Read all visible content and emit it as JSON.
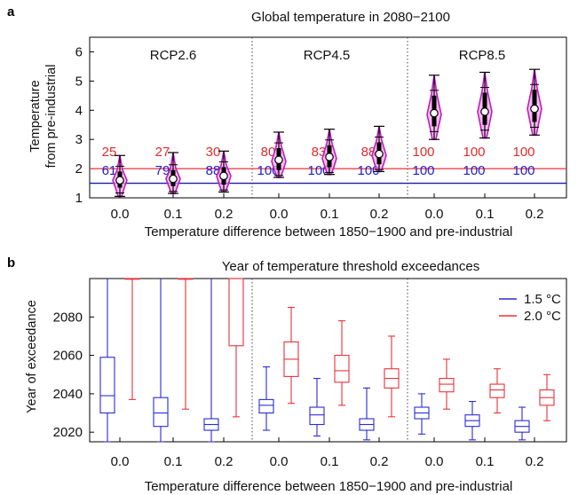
{
  "chart_data": [
    {
      "type": "box",
      "panel_label": "a",
      "title": "Global temperature in 2080−2100",
      "xlabel": "Temperature difference between 1850−1900 and pre-industrial",
      "ylabel": "Temperature from pre-industrial",
      "ylabel_lines": [
        "Temperature",
        "from pre-industrial"
      ],
      "ylim": [
        1,
        6.5
      ],
      "yticks": [
        "1",
        "2",
        "3",
        "4",
        "5",
        "6"
      ],
      "groups": [
        "RCP2.6",
        "RCP4.5",
        "RCP8.5"
      ],
      "x_categories": [
        "0.0",
        "0.1",
        "0.2"
      ],
      "reference_lines": [
        {
          "value": 1.5,
          "color": "#1a1aa6"
        },
        {
          "value": 2.0,
          "color": "#e8333a"
        }
      ],
      "series": [
        {
          "group": "RCP2.6",
          "x": "0.0",
          "min": 1.05,
          "q1": 1.35,
          "median": 1.6,
          "q3": 1.9,
          "max": 2.45,
          "mean": 1.6
        },
        {
          "group": "RCP2.6",
          "x": "0.1",
          "min": 1.15,
          "q1": 1.4,
          "median": 1.65,
          "q3": 1.95,
          "max": 2.55,
          "mean": 1.65
        },
        {
          "group": "RCP2.6",
          "x": "0.2",
          "min": 1.2,
          "q1": 1.45,
          "median": 1.75,
          "q3": 2.05,
          "max": 2.6,
          "mean": 1.75
        },
        {
          "group": "RCP4.5",
          "x": "0.0",
          "min": 1.7,
          "q1": 1.95,
          "median": 2.25,
          "q3": 2.7,
          "max": 3.25,
          "mean": 2.3
        },
        {
          "group": "RCP4.5",
          "x": "0.1",
          "min": 1.8,
          "q1": 2.05,
          "median": 2.35,
          "q3": 2.8,
          "max": 3.35,
          "mean": 2.4
        },
        {
          "group": "RCP4.5",
          "x": "0.2",
          "min": 1.9,
          "q1": 2.15,
          "median": 2.45,
          "q3": 2.9,
          "max": 3.45,
          "mean": 2.5
        },
        {
          "group": "RCP8.5",
          "x": "0.0",
          "min": 3.0,
          "q1": 3.45,
          "median": 3.85,
          "q3": 4.5,
          "max": 5.2,
          "mean": 3.9
        },
        {
          "group": "RCP8.5",
          "x": "0.1",
          "min": 3.05,
          "q1": 3.5,
          "median": 3.95,
          "q3": 4.6,
          "max": 5.3,
          "mean": 3.95
        },
        {
          "group": "RCP8.5",
          "x": "0.2",
          "min": 3.15,
          "q1": 3.6,
          "median": 4.05,
          "q3": 4.7,
          "max": 5.4,
          "mean": 4.05
        }
      ],
      "percent_labels_2_0": [
        "25",
        "27",
        "30",
        "80",
        "83",
        "88",
        "100",
        "100",
        "100"
      ],
      "percent_labels_1_5": [
        "61",
        "79",
        "88",
        "100",
        "100",
        "100",
        "100",
        "100",
        "100"
      ]
    },
    {
      "type": "box",
      "panel_label": "b",
      "title": "Year of temperature threshold exceedances",
      "xlabel": "Temperature difference between 1850−1900 and pre-industrial",
      "ylabel": "Year of exceedance",
      "ylim": [
        2015,
        2100
      ],
      "yticks": [
        "2020",
        "2040",
        "2060",
        "2080"
      ],
      "x_categories": [
        "0.0",
        "0.1",
        "0.2"
      ],
      "legend": {
        "position": "top-right",
        "entries": [
          {
            "label": "1.5 °C",
            "color": "#2b2bd6"
          },
          {
            "label": "2.0 °C",
            "color": "#e8333a"
          }
        ]
      },
      "series": [
        {
          "threshold": "1.5",
          "group": 1,
          "x": "0.0",
          "min": 2015,
          "q1": 2030,
          "median": 2039,
          "q3": 2059,
          "max": 2100
        },
        {
          "threshold": "2.0",
          "group": 1,
          "x": "0.0",
          "min": 2037,
          "q1": 2100,
          "median": 2100,
          "q3": 2100,
          "max": 2100
        },
        {
          "threshold": "1.5",
          "group": 1,
          "x": "0.1",
          "min": 2015,
          "q1": 2023,
          "median": 2030,
          "q3": 2038,
          "max": 2100
        },
        {
          "threshold": "2.0",
          "group": 1,
          "x": "0.1",
          "min": 2032,
          "q1": 2100,
          "median": 2100,
          "q3": 2100,
          "max": 2100
        },
        {
          "threshold": "1.5",
          "group": 1,
          "x": "0.2",
          "min": 2015,
          "q1": 2021,
          "median": 2024,
          "q3": 2027,
          "max": 2100
        },
        {
          "threshold": "2.0",
          "group": 1,
          "x": "0.2",
          "min": 2028,
          "q1": 2065,
          "median": 2100,
          "q3": 2100,
          "max": 2100
        },
        {
          "threshold": "1.5",
          "group": 2,
          "x": "0.0",
          "min": 2021,
          "q1": 2030,
          "median": 2034,
          "q3": 2037,
          "max": 2054
        },
        {
          "threshold": "2.0",
          "group": 2,
          "x": "0.0",
          "min": 2035,
          "q1": 2049,
          "median": 2058,
          "q3": 2067,
          "max": 2085
        },
        {
          "threshold": "1.5",
          "group": 2,
          "x": "0.1",
          "min": 2018,
          "q1": 2024,
          "median": 2029,
          "q3": 2033,
          "max": 2048
        },
        {
          "threshold": "2.0",
          "group": 2,
          "x": "0.1",
          "min": 2034,
          "q1": 2046,
          "median": 2052,
          "q3": 2060,
          "max": 2078
        },
        {
          "threshold": "1.5",
          "group": 2,
          "x": "0.2",
          "min": 2016,
          "q1": 2021,
          "median": 2024,
          "q3": 2027,
          "max": 2043
        },
        {
          "threshold": "2.0",
          "group": 2,
          "x": "0.2",
          "min": 2028,
          "q1": 2043,
          "median": 2048,
          "q3": 2053,
          "max": 2070
        },
        {
          "threshold": "1.5",
          "group": 3,
          "x": "0.0",
          "min": 2019,
          "q1": 2027,
          "median": 2030,
          "q3": 2033,
          "max": 2040
        },
        {
          "threshold": "2.0",
          "group": 3,
          "x": "0.0",
          "min": 2032,
          "q1": 2041,
          "median": 2045,
          "q3": 2048,
          "max": 2058
        },
        {
          "threshold": "1.5",
          "group": 3,
          "x": "0.1",
          "min": 2016,
          "q1": 2023,
          "median": 2026,
          "q3": 2029,
          "max": 2036
        },
        {
          "threshold": "2.0",
          "group": 3,
          "x": "0.1",
          "min": 2030,
          "q1": 2038,
          "median": 2042,
          "q3": 2045,
          "max": 2053
        },
        {
          "threshold": "1.5",
          "group": 3,
          "x": "0.2",
          "min": 2016,
          "q1": 2020,
          "median": 2023,
          "q3": 2026,
          "max": 2033
        },
        {
          "threshold": "2.0",
          "group": 3,
          "x": "0.2",
          "min": 2026,
          "q1": 2034,
          "median": 2038,
          "q3": 2042,
          "max": 2050
        }
      ]
    }
  ]
}
